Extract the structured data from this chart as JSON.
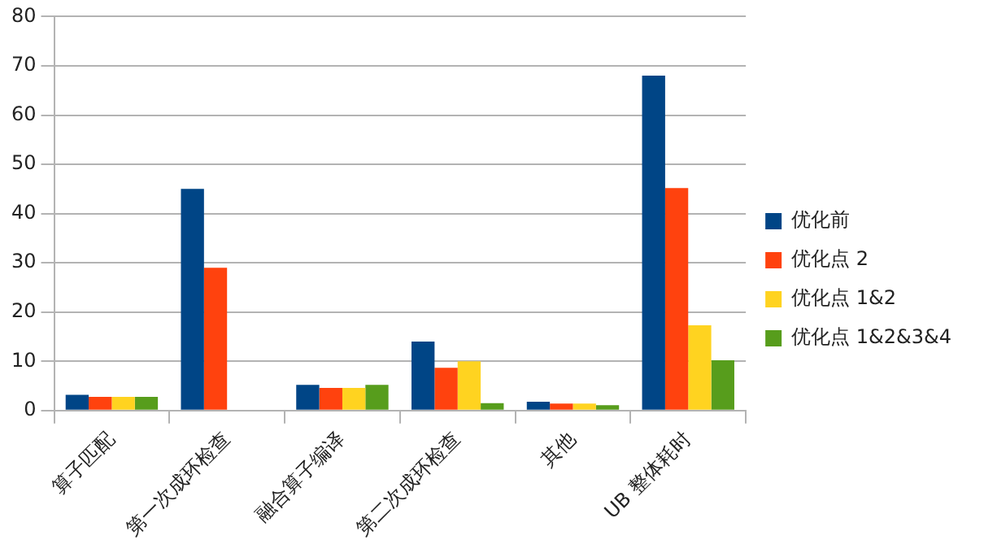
{
  "chart_data": {
    "type": "bar",
    "categories": [
      "算子匹配",
      "第一次成环检查",
      "融合算子编译",
      "第二次成环检查",
      "其他",
      "UB 整体耗时"
    ],
    "series": [
      {
        "name": "优化前",
        "color": "#004586",
        "values": [
          3.2,
          45,
          5.2,
          14,
          1.8,
          68
        ]
      },
      {
        "name": "优化点 2",
        "color": "#ff420e",
        "values": [
          2.8,
          29,
          4.6,
          8.7,
          1.4,
          45.2
        ]
      },
      {
        "name": "优化点 1&2",
        "color": "#ffd320",
        "values": [
          2.8,
          null,
          4.6,
          10,
          1.4,
          17.3
        ]
      },
      {
        "name": "优化点 1&2&3&4",
        "color": "#579d1c",
        "values": [
          2.8,
          null,
          5.2,
          1.5,
          1.1,
          10.2
        ]
      }
    ],
    "ylim": [
      0,
      80
    ],
    "yticks": [
      0,
      10,
      20,
      30,
      40,
      50,
      60,
      70,
      80
    ],
    "grid": "y",
    "legend": "right"
  }
}
